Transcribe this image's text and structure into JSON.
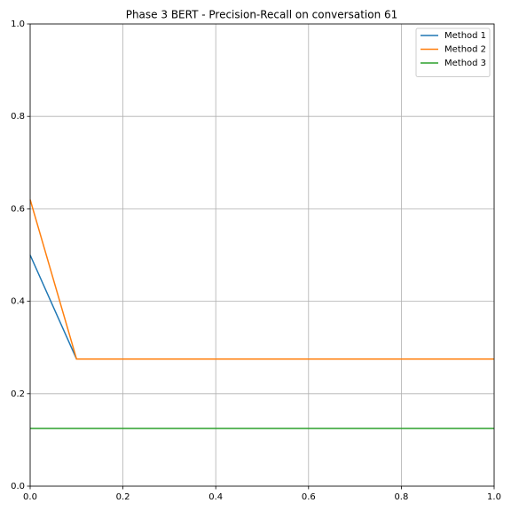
{
  "chart_data": {
    "type": "line",
    "title": "Phase 3 BERT - Precision-Recall on conversation 61",
    "x": [
      0,
      0.1,
      1
    ],
    "series": [
      {
        "name": "Method 1",
        "color": "#1f77b4",
        "values": [
          0.5,
          0.275,
          0.275
        ]
      },
      {
        "name": "Method 2",
        "color": "#ff7f0e",
        "values": [
          0.62,
          0.275,
          0.275
        ]
      },
      {
        "name": "Method 3",
        "color": "#2ca02c",
        "values": [
          0.125,
          0.125,
          0.125
        ]
      }
    ],
    "xlim": [
      0,
      1
    ],
    "ylim": [
      0,
      1
    ],
    "xticks": [
      {
        "value": 0,
        "label": "0.0"
      },
      0.2,
      0.4,
      0.6,
      0.8,
      {
        "value": 1,
        "label": "1.0"
      }
    ],
    "yticks": [
      {
        "value": 0,
        "label": "0.0"
      },
      0.2,
      0.4,
      0.6,
      0.8,
      {
        "value": 1,
        "label": "1.0"
      }
    ],
    "grid": true,
    "legend": "upper right"
  }
}
